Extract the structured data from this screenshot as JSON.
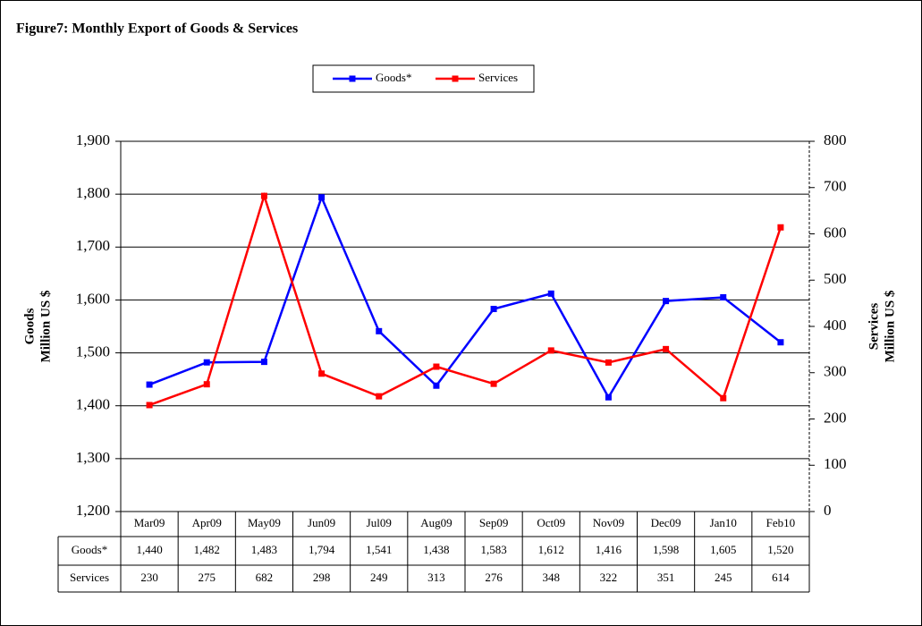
{
  "chart_data": {
    "type": "line",
    "title": "Figure7: Monthly Export of Goods & Services",
    "ylabel": [
      "Goods",
      "Million US $"
    ],
    "y2label": [
      "Services",
      "Million US $"
    ],
    "categories": [
      "Mar09",
      "Apr09",
      "May09",
      "Jun09",
      "Jul09",
      "Aug09",
      "Sep09",
      "Oct09",
      "Nov09",
      "Dec09",
      "Jan10",
      "Feb10"
    ],
    "series": [
      {
        "name": "Goods*",
        "color": "#0000ff",
        "values": [
          1440,
          1482,
          1483,
          1794,
          1541,
          1438,
          1583,
          1612,
          1416,
          1598,
          1605,
          1520
        ],
        "value_labels": [
          "1,440",
          "1,482",
          "1,483",
          "1,794",
          "1,541",
          "1,438",
          "1,583",
          "1,612",
          "1,416",
          "1,598",
          "1,605",
          "1,520"
        ]
      },
      {
        "name": "Services",
        "color": "#ff0000",
        "axis": "y2",
        "values": [
          230,
          275,
          682,
          298,
          249,
          313,
          276,
          348,
          322,
          351,
          245,
          614
        ]
      }
    ],
    "ylim": [
      1200,
      1900
    ],
    "yticks": [
      {
        "value": 1200,
        "label": "1,200"
      },
      {
        "value": 1300,
        "label": "1,300"
      },
      {
        "value": 1400,
        "label": "1,400"
      },
      {
        "value": 1500,
        "label": "1,500"
      },
      {
        "value": 1600,
        "label": "1,600"
      },
      {
        "value": 1700,
        "label": "1,700"
      },
      {
        "value": 1800,
        "label": "1,800"
      },
      {
        "value": 1900,
        "label": "1,900"
      }
    ],
    "y2lim": [
      0,
      800
    ],
    "y2ticks": [
      0,
      100,
      200,
      300,
      400,
      500,
      600,
      700,
      800
    ],
    "grid": true,
    "legend": "top"
  }
}
